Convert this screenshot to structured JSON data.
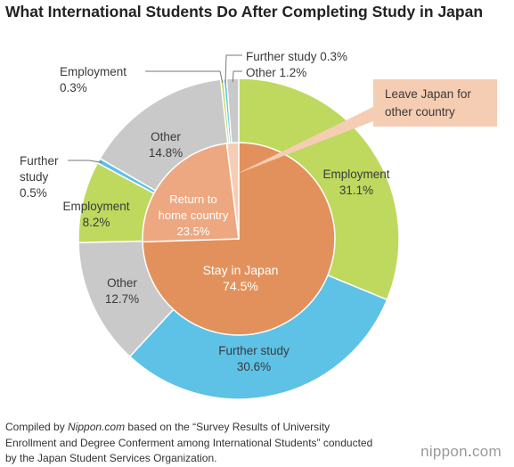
{
  "title": "What International Students Do After Completing Study in Japan",
  "source": {
    "prefix": "Compiled by ",
    "site": "Nippon.com",
    "rest": " based on the “Survey Results of University Enrollment and Degree Conferment among International Students” conducted by the Japan Student Services Organization."
  },
  "brand": {
    "left": "nippon",
    "dot": ".",
    "right": "com"
  },
  "colors": {
    "stay": "#e3915c",
    "home": "#eda882",
    "leave": "#f5cdb2",
    "employment": "#bed95e",
    "further": "#5ec1e6",
    "other": "#c9c9c9"
  },
  "chart_data": {
    "type": "pie",
    "subtype": "nested-donut",
    "title": "What International Students Do After Completing Study in Japan",
    "inner": [
      {
        "name": "Stay in Japan",
        "value": 74.5,
        "label_name": "Stay in Japan",
        "label_value": "74.5%"
      },
      {
        "name": "Return to home country",
        "value": 23.5,
        "label_name": "Return to\nhome country",
        "label_value": "23.5%"
      },
      {
        "name": "Leave Japan for other country",
        "value": 2.0,
        "label_name": "Leave Japan for\nother country",
        "label_value": ""
      }
    ],
    "outer": [
      {
        "parent": "Stay in Japan",
        "name": "Employment",
        "value": 31.1,
        "label_value": "31.1%"
      },
      {
        "parent": "Stay in Japan",
        "name": "Further study",
        "value": 30.6,
        "label_value": "30.6%"
      },
      {
        "parent": "Stay in Japan",
        "name": "Other",
        "value": 12.7,
        "label_value": "12.7%"
      },
      {
        "parent": "Return to home country",
        "name": "Employment",
        "value": 8.2,
        "label_value": "8.2%"
      },
      {
        "parent": "Return to home country",
        "name": "Further study",
        "value": 0.5,
        "label_value": "0.5%"
      },
      {
        "parent": "Return to home country",
        "name": "Other",
        "value": 14.8,
        "label_value": "14.8%"
      },
      {
        "parent": "Leave Japan for other country",
        "name": "Employment",
        "value": 0.3,
        "label_value": "0.3%"
      },
      {
        "parent": "Leave Japan for other country",
        "name": "Further study",
        "value": 0.3,
        "label_value": "0.3%"
      },
      {
        "parent": "Leave Japan for other country",
        "name": "Other",
        "value": 1.2,
        "label_value": "1.2%"
      }
    ]
  }
}
